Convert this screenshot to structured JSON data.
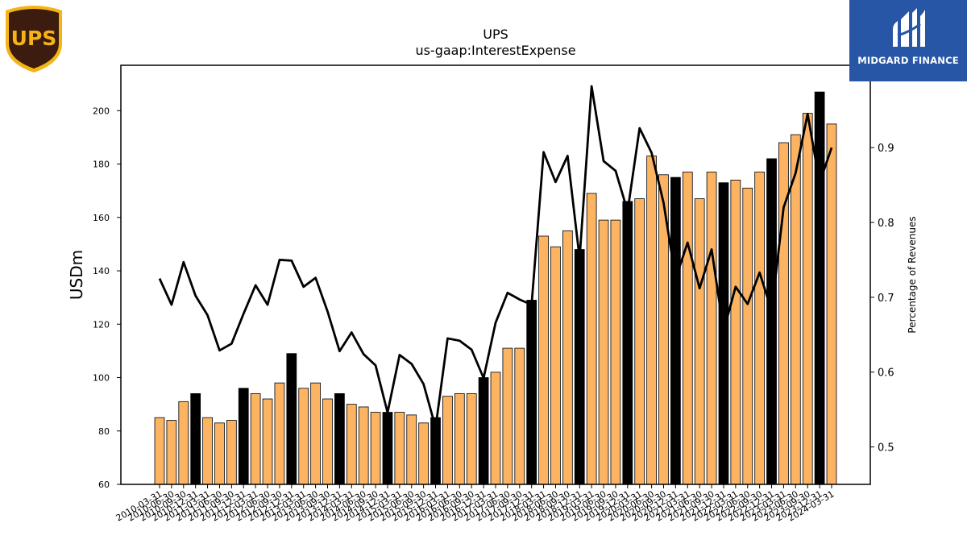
{
  "logos": {
    "left_text": "UPS",
    "right_text": "MIDGARD FINANCE"
  },
  "colors": {
    "bar": "#fdb462",
    "bar_highlight": "#000000",
    "line": "#000000",
    "ups_brown": "#3b1c0e",
    "ups_gold": "#f5b416",
    "midgard_blue": "#2756a6"
  },
  "chart_data": {
    "type": "bar",
    "title": "UPS",
    "subtitle": "us-gaap:InterestExpense",
    "ylabel": "USDm",
    "y2label": "Percentage of Revenues",
    "ylim": [
      60,
      217
    ],
    "y2lim": [
      0.45,
      1.01
    ],
    "yticks": [
      60,
      80,
      100,
      120,
      140,
      160,
      180,
      200
    ],
    "y2ticks": [
      "0.5",
      "0.6",
      "0.7",
      "0.8",
      "0.9"
    ],
    "categories": [
      "2010-03-31",
      "2010-06-30",
      "2010-09-30",
      "2010-12-31",
      "2011-03-31",
      "2011-06-30",
      "2011-09-30",
      "2011-12-31",
      "2012-03-31",
      "2012-06-30",
      "2012-09-30",
      "2012-12-31",
      "2013-03-31",
      "2013-06-30",
      "2013-09-30",
      "2013-12-31",
      "2014-03-31",
      "2014-06-30",
      "2014-09-30",
      "2014-12-31",
      "2015-03-31",
      "2015-06-30",
      "2015-09-30",
      "2015-12-31",
      "2016-03-31",
      "2016-06-30",
      "2016-09-30",
      "2016-12-31",
      "2017-03-31",
      "2017-06-30",
      "2017-09-30",
      "2017-12-31",
      "2018-03-31",
      "2018-06-30",
      "2018-09-30",
      "2018-12-31",
      "2019-03-31",
      "2019-06-30",
      "2019-09-30",
      "2019-12-31",
      "2020-03-31",
      "2020-06-30",
      "2020-09-30",
      "2020-12-31",
      "2021-03-31",
      "2021-06-30",
      "2021-09-30",
      "2021-12-31",
      "2022-03-31",
      "2022-06-30",
      "2022-09-30",
      "2022-12-31",
      "2023-03-31",
      "2023-06-30",
      "2023-09-30",
      "2023-12-31",
      "2024-03-31"
    ],
    "series": [
      {
        "type": "bar",
        "values": [
          85,
          84,
          91,
          94,
          85,
          83,
          84,
          96,
          94,
          92,
          98,
          109,
          96,
          98,
          92,
          94,
          90,
          89,
          87,
          87,
          87,
          86,
          83,
          85,
          93,
          94,
          94,
          100,
          102,
          111,
          111,
          129,
          153,
          149,
          155,
          148,
          169,
          159,
          159,
          166,
          167,
          183,
          176,
          175,
          177,
          167,
          177,
          173,
          174,
          171,
          177,
          182,
          188,
          191,
          199,
          207,
          195
        ],
        "highlight": [
          false,
          false,
          false,
          true,
          false,
          false,
          false,
          true,
          false,
          false,
          false,
          true,
          false,
          false,
          false,
          true,
          false,
          false,
          false,
          true,
          false,
          false,
          false,
          true,
          false,
          false,
          false,
          true,
          false,
          false,
          false,
          true,
          false,
          false,
          false,
          true,
          false,
          false,
          false,
          true,
          false,
          false,
          false,
          true,
          false,
          false,
          false,
          true,
          false,
          false,
          false,
          true,
          false,
          false,
          false,
          true,
          false
        ]
      },
      {
        "type": "line",
        "axis": "right",
        "values": [
          0.725,
          0.69,
          0.747,
          0.702,
          0.676,
          0.629,
          0.638,
          0.678,
          0.716,
          0.69,
          0.75,
          0.749,
          0.714,
          0.726,
          0.681,
          0.628,
          0.653,
          0.624,
          0.609,
          0.546,
          0.623,
          0.611,
          0.584,
          0.526,
          0.645,
          0.642,
          0.63,
          0.592,
          0.666,
          0.706,
          0.697,
          0.69,
          0.894,
          0.854,
          0.889,
          0.752,
          0.982,
          0.882,
          0.869,
          0.815,
          0.926,
          0.893,
          0.826,
          0.725,
          0.773,
          0.712,
          0.764,
          0.655,
          0.714,
          0.691,
          0.733,
          0.682,
          0.82,
          0.866,
          0.945,
          0.853,
          0.9
        ]
      }
    ]
  }
}
